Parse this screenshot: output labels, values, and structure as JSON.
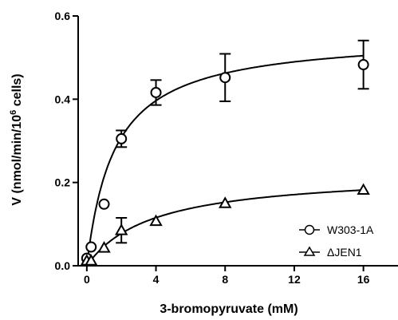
{
  "chart_data": {
    "type": "scatter",
    "xlabel": "3-bromopyruvate (mM)",
    "ylabel": {
      "prefix": "V (nmol/min/10",
      "superscript": "6",
      "suffix": " cells)"
    },
    "xlim": [
      -0.5,
      18
    ],
    "ylim": [
      0,
      0.6
    ],
    "xticks": [
      0,
      4,
      8,
      12,
      16
    ],
    "xtick_labels": [
      "0",
      "4",
      "8",
      "12",
      "16"
    ],
    "yticks": [
      0.0,
      0.2,
      0.4,
      0.6
    ],
    "ytick_labels": [
      "0.0",
      "0.2",
      "0.4",
      "0.6"
    ],
    "grid": false,
    "legend_position": "bottom-right",
    "series": [
      {
        "name": "W303-1A",
        "marker": "circle",
        "x": [
          0,
          0.25,
          1,
          2,
          4,
          8,
          16
        ],
        "y": [
          0.018,
          0.045,
          0.148,
          0.305,
          0.416,
          0.452,
          0.483
        ],
        "error": [
          0,
          0,
          0,
          0.02,
          0.03,
          0.057,
          0.058
        ],
        "fit": {
          "model": "michaelis-menten",
          "vmax": 0.555,
          "km": 1.6
        }
      },
      {
        "name": "ΔJEN1",
        "marker": "triangle",
        "x": [
          0,
          0.25,
          1,
          2,
          4,
          8,
          16
        ],
        "y": [
          0.012,
          0.012,
          0.043,
          0.085,
          0.107,
          0.15,
          0.182
        ],
        "error": [
          0,
          0,
          0,
          0.03,
          0,
          0,
          0
        ],
        "fit": {
          "model": "michaelis-menten",
          "vmax": 0.225,
          "km": 3.8
        }
      }
    ]
  }
}
